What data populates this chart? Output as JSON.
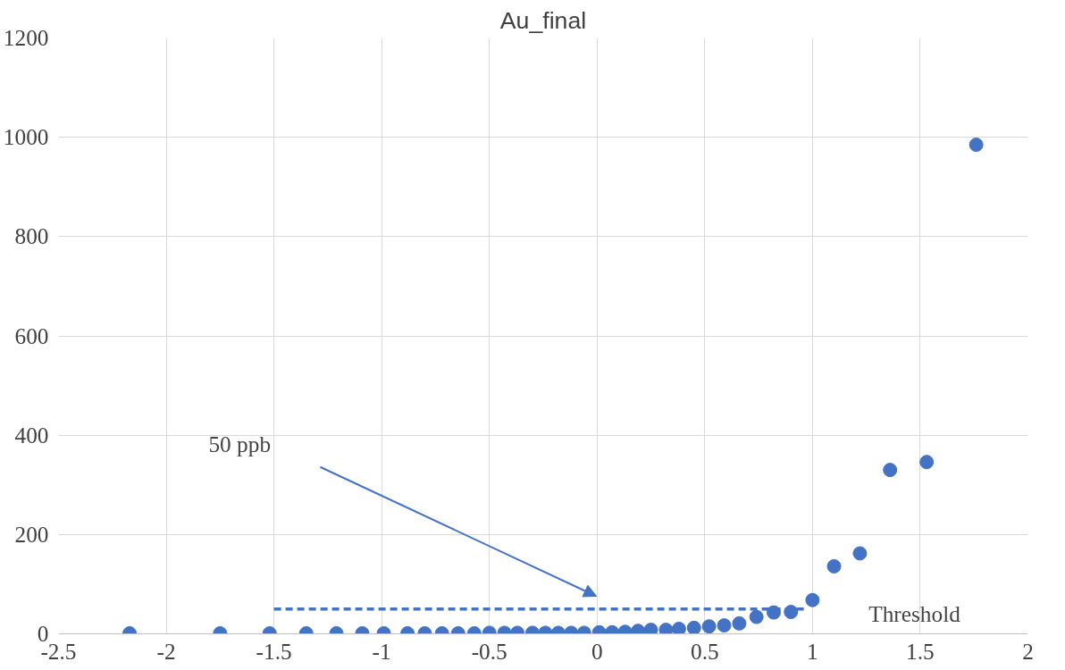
{
  "chart_data": {
    "type": "scatter",
    "title": "Au_final",
    "xlim": [
      -2.5,
      2
    ],
    "ylim": [
      0,
      1200
    ],
    "xticks": [
      -2.5,
      -2,
      -1.5,
      -1,
      -0.5,
      0,
      0.5,
      1,
      1.5,
      2
    ],
    "yticks": [
      0,
      200,
      400,
      600,
      800,
      1000,
      1200
    ],
    "grid": true,
    "marker": "circle",
    "series": [
      {
        "color": "#4472c4",
        "x": [
          -2.17,
          -1.75,
          -1.52,
          -1.35,
          -1.21,
          -1.09,
          -0.99,
          -0.88,
          -0.8,
          -0.72,
          -0.645,
          -0.57,
          -0.5,
          -0.43,
          -0.37,
          -0.3,
          -0.24,
          -0.18,
          -0.12,
          -0.06,
          0.01,
          0.07,
          0.13,
          0.19,
          0.25,
          0.32,
          0.38,
          0.45,
          0.52,
          0.59,
          0.66,
          0.74,
          0.82,
          0.9,
          1.0,
          1.1,
          1.22,
          1.36,
          1.53,
          1.76
        ],
        "values": [
          1,
          1,
          1,
          1,
          1,
          1,
          1,
          1,
          1,
          1,
          1,
          1,
          2,
          2,
          2,
          2,
          2,
          2,
          2,
          2,
          3,
          3,
          4,
          6,
          8,
          8,
          10,
          12,
          15,
          17,
          21,
          34,
          43,
          44,
          68,
          136,
          162,
          330,
          346,
          985
        ]
      },
      {
        "name": "Threshold",
        "type": "line",
        "color": "#4472c4",
        "line_style": "dashed",
        "marker": "none",
        "x": [
          -1.5,
          0.97
        ],
        "values": [
          50,
          50
        ]
      }
    ],
    "annotations": [
      "50 ppb"
    ]
  }
}
